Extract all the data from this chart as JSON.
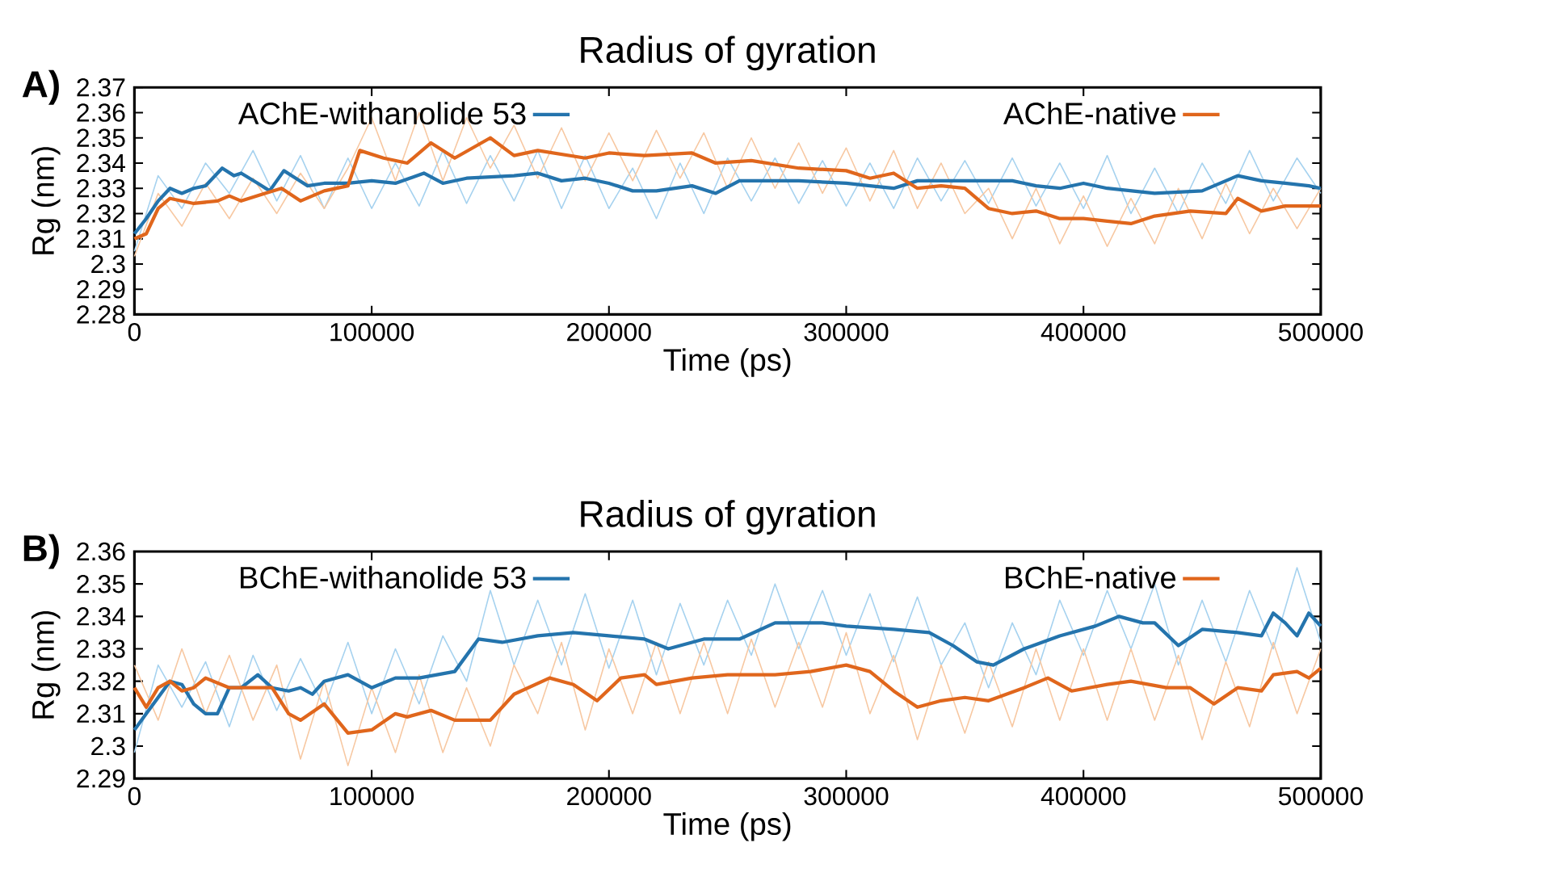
{
  "chart_data": [
    {
      "type": "line",
      "title": "Radius of gyration",
      "xlabel": "Time (ps)",
      "ylabel": "Rg (nm)",
      "annotations": [
        "A)"
      ],
      "legend": "top",
      "grid": false,
      "marker": "none",
      "line_style": "solid",
      "xlim": [
        0,
        500000
      ],
      "xticks": [
        0,
        100000,
        200000,
        300000,
        400000,
        500000
      ],
      "ylim": [
        2.28,
        2.37
      ],
      "yticks": [
        2.28,
        2.29,
        2.3,
        2.31,
        2.32,
        2.33,
        2.34,
        2.35,
        2.36,
        2.37
      ],
      "series": [
        {
          "color": "#a6d2ef",
          "x": [
            0,
            10000,
            20000,
            30000,
            40000,
            50000,
            60000,
            70000,
            80000,
            90000,
            100000,
            110000,
            120000,
            130000,
            140000,
            150000,
            160000,
            170000,
            180000,
            190000,
            200000,
            210000,
            220000,
            230000,
            240000,
            250000,
            260000,
            270000,
            280000,
            290000,
            300000,
            310000,
            320000,
            330000,
            340000,
            350000,
            360000,
            370000,
            380000,
            390000,
            400000,
            410000,
            420000,
            430000,
            440000,
            450000,
            460000,
            470000,
            480000,
            490000,
            500000
          ],
          "values": [
            2.305,
            2.335,
            2.322,
            2.34,
            2.328,
            2.345,
            2.325,
            2.343,
            2.322,
            2.342,
            2.322,
            2.34,
            2.323,
            2.345,
            2.324,
            2.343,
            2.325,
            2.345,
            2.322,
            2.343,
            2.322,
            2.338,
            2.318,
            2.34,
            2.32,
            2.342,
            2.325,
            2.342,
            2.324,
            2.341,
            2.323,
            2.34,
            2.322,
            2.342,
            2.325,
            2.341,
            2.324,
            2.342,
            2.323,
            2.34,
            2.322,
            2.343,
            2.32,
            2.338,
            2.32,
            2.34,
            2.324,
            2.345,
            2.325,
            2.342,
            2.328
          ]
        },
        {
          "color": "#f7c8a2",
          "x": [
            0,
            10000,
            20000,
            30000,
            40000,
            50000,
            60000,
            70000,
            80000,
            90000,
            100000,
            110000,
            120000,
            130000,
            140000,
            150000,
            160000,
            170000,
            180000,
            190000,
            200000,
            210000,
            220000,
            230000,
            240000,
            250000,
            260000,
            270000,
            280000,
            290000,
            300000,
            310000,
            320000,
            330000,
            340000,
            350000,
            360000,
            370000,
            380000,
            390000,
            400000,
            410000,
            420000,
            430000,
            440000,
            450000,
            460000,
            470000,
            480000,
            490000,
            500000
          ],
          "values": [
            2.303,
            2.328,
            2.315,
            2.332,
            2.318,
            2.334,
            2.32,
            2.336,
            2.322,
            2.338,
            2.358,
            2.333,
            2.36,
            2.333,
            2.358,
            2.338,
            2.355,
            2.334,
            2.354,
            2.333,
            2.352,
            2.333,
            2.353,
            2.334,
            2.352,
            2.33,
            2.35,
            2.33,
            2.348,
            2.328,
            2.346,
            2.325,
            2.345,
            2.322,
            2.34,
            2.32,
            2.33,
            2.31,
            2.33,
            2.308,
            2.327,
            2.307,
            2.326,
            2.308,
            2.33,
            2.31,
            2.332,
            2.312,
            2.33,
            2.314,
            2.33
          ]
        },
        {
          "name": "AChE-withanolide 53",
          "color": "#2474ad",
          "x": [
            0,
            5000,
            10000,
            15000,
            20000,
            25000,
            30000,
            37000,
            42000,
            45000,
            52000,
            57000,
            63000,
            68000,
            73000,
            80000,
            90000,
            100000,
            110000,
            122000,
            130000,
            140000,
            160000,
            170000,
            180000,
            190000,
            200000,
            210000,
            220000,
            235000,
            245000,
            255000,
            280000,
            300000,
            310000,
            320000,
            330000,
            345000,
            360000,
            370000,
            380000,
            390000,
            400000,
            410000,
            430000,
            450000,
            465000,
            475000,
            485000,
            495000,
            500000
          ],
          "values": [
            2.312,
            2.318,
            2.325,
            2.33,
            2.328,
            2.33,
            2.331,
            2.338,
            2.335,
            2.336,
            2.332,
            2.329,
            2.337,
            2.334,
            2.331,
            2.332,
            2.332,
            2.333,
            2.332,
            2.336,
            2.332,
            2.334,
            2.335,
            2.336,
            2.333,
            2.334,
            2.332,
            2.329,
            2.329,
            2.331,
            2.328,
            2.333,
            2.333,
            2.332,
            2.331,
            2.33,
            2.333,
            2.333,
            2.333,
            2.333,
            2.331,
            2.33,
            2.332,
            2.33,
            2.328,
            2.329,
            2.335,
            2.333,
            2.332,
            2.331,
            2.33
          ]
        },
        {
          "name": "AChE-native",
          "color": "#e0661c",
          "x": [
            0,
            5000,
            10000,
            15000,
            25000,
            35000,
            40000,
            45000,
            55000,
            62000,
            70000,
            80000,
            90000,
            95000,
            105000,
            115000,
            125000,
            135000,
            150000,
            160000,
            170000,
            190000,
            200000,
            215000,
            235000,
            245000,
            260000,
            280000,
            300000,
            310000,
            320000,
            330000,
            340000,
            350000,
            360000,
            370000,
            380000,
            390000,
            400000,
            410000,
            420000,
            430000,
            445000,
            460000,
            465000,
            475000,
            485000,
            500000
          ],
          "values": [
            2.31,
            2.312,
            2.322,
            2.326,
            2.324,
            2.325,
            2.327,
            2.325,
            2.328,
            2.33,
            2.325,
            2.329,
            2.331,
            2.345,
            2.342,
            2.34,
            2.348,
            2.342,
            2.35,
            2.343,
            2.345,
            2.342,
            2.344,
            2.343,
            2.344,
            2.34,
            2.341,
            2.338,
            2.337,
            2.334,
            2.336,
            2.33,
            2.331,
            2.33,
            2.322,
            2.32,
            2.321,
            2.318,
            2.318,
            2.317,
            2.316,
            2.319,
            2.321,
            2.32,
            2.326,
            2.321,
            2.323,
            2.323
          ]
        }
      ]
    },
    {
      "type": "line",
      "title": "Radius of gyration",
      "xlabel": "Time (ps)",
      "ylabel": "Rg (nm)",
      "annotations": [
        "B)"
      ],
      "legend": "top",
      "grid": false,
      "marker": "none",
      "line_style": "solid",
      "xlim": [
        0,
        500000
      ],
      "xticks": [
        0,
        100000,
        200000,
        300000,
        400000,
        500000
      ],
      "ylim": [
        2.29,
        2.36
      ],
      "yticks": [
        2.29,
        2.3,
        2.31,
        2.32,
        2.33,
        2.34,
        2.35,
        2.36
      ],
      "series": [
        {
          "color": "#a6d2ef",
          "x": [
            0,
            10000,
            20000,
            30000,
            40000,
            50000,
            60000,
            70000,
            80000,
            90000,
            100000,
            110000,
            120000,
            130000,
            140000,
            150000,
            160000,
            170000,
            180000,
            190000,
            200000,
            210000,
            220000,
            230000,
            240000,
            250000,
            260000,
            270000,
            280000,
            290000,
            300000,
            310000,
            320000,
            330000,
            340000,
            350000,
            360000,
            370000,
            380000,
            390000,
            400000,
            410000,
            420000,
            430000,
            440000,
            450000,
            460000,
            470000,
            480000,
            490000,
            500000
          ],
          "values": [
            2.298,
            2.325,
            2.312,
            2.326,
            2.306,
            2.328,
            2.311,
            2.327,
            2.312,
            2.332,
            2.31,
            2.33,
            2.313,
            2.334,
            2.32,
            2.348,
            2.325,
            2.345,
            2.325,
            2.347,
            2.324,
            2.345,
            2.322,
            2.344,
            2.325,
            2.345,
            2.328,
            2.35,
            2.33,
            2.348,
            2.328,
            2.347,
            2.326,
            2.346,
            2.325,
            2.338,
            2.318,
            2.338,
            2.322,
            2.345,
            2.328,
            2.348,
            2.33,
            2.35,
            2.325,
            2.345,
            2.326,
            2.348,
            2.33,
            2.355,
            2.332
          ]
        },
        {
          "color": "#f7c8a2",
          "x": [
            0,
            10000,
            20000,
            30000,
            40000,
            50000,
            60000,
            70000,
            80000,
            90000,
            100000,
            110000,
            120000,
            130000,
            140000,
            150000,
            160000,
            170000,
            180000,
            190000,
            200000,
            210000,
            220000,
            230000,
            240000,
            250000,
            260000,
            270000,
            280000,
            290000,
            300000,
            310000,
            320000,
            330000,
            340000,
            350000,
            360000,
            370000,
            380000,
            390000,
            400000,
            410000,
            420000,
            430000,
            440000,
            450000,
            460000,
            470000,
            480000,
            490000,
            500000
          ],
          "values": [
            2.325,
            2.308,
            2.33,
            2.31,
            2.328,
            2.308,
            2.325,
            2.296,
            2.32,
            2.294,
            2.318,
            2.298,
            2.322,
            2.298,
            2.318,
            2.3,
            2.325,
            2.31,
            2.332,
            2.305,
            2.33,
            2.31,
            2.332,
            2.31,
            2.332,
            2.31,
            2.333,
            2.312,
            2.332,
            2.312,
            2.335,
            2.31,
            2.328,
            2.302,
            2.325,
            2.304,
            2.326,
            2.306,
            2.33,
            2.308,
            2.33,
            2.308,
            2.33,
            2.308,
            2.328,
            2.302,
            2.326,
            2.306,
            2.332,
            2.31,
            2.33
          ]
        },
        {
          "name": "BChE-withanolide 53",
          "color": "#2474ad",
          "x": [
            0,
            5000,
            10000,
            15000,
            20000,
            25000,
            30000,
            35000,
            40000,
            45000,
            52000,
            58000,
            65000,
            70000,
            75000,
            80000,
            90000,
            100000,
            110000,
            120000,
            135000,
            145000,
            155000,
            170000,
            185000,
            200000,
            215000,
            225000,
            240000,
            255000,
            270000,
            290000,
            300000,
            320000,
            335000,
            345000,
            355000,
            362000,
            375000,
            390000,
            405000,
            415000,
            425000,
            430000,
            440000,
            450000,
            465000,
            475000,
            480000,
            485000,
            490000,
            495000,
            500000
          ],
          "values": [
            2.305,
            2.31,
            2.315,
            2.32,
            2.319,
            2.313,
            2.31,
            2.31,
            2.318,
            2.318,
            2.322,
            2.318,
            2.317,
            2.318,
            2.316,
            2.32,
            2.322,
            2.318,
            2.321,
            2.321,
            2.323,
            2.333,
            2.332,
            2.334,
            2.335,
            2.334,
            2.333,
            2.33,
            2.333,
            2.333,
            2.338,
            2.338,
            2.337,
            2.336,
            2.335,
            2.331,
            2.326,
            2.325,
            2.33,
            2.334,
            2.337,
            2.34,
            2.338,
            2.338,
            2.331,
            2.336,
            2.335,
            2.334,
            2.341,
            2.338,
            2.334,
            2.341,
            2.337
          ]
        },
        {
          "name": "BChE-native",
          "color": "#e0661c",
          "x": [
            0,
            5000,
            10000,
            15000,
            20000,
            25000,
            30000,
            40000,
            50000,
            58000,
            65000,
            70000,
            80000,
            90000,
            100000,
            110000,
            115000,
            125000,
            135000,
            150000,
            160000,
            175000,
            185000,
            195000,
            205000,
            215000,
            220000,
            235000,
            250000,
            270000,
            285000,
            300000,
            310000,
            320000,
            330000,
            340000,
            350000,
            360000,
            375000,
            385000,
            395000,
            410000,
            420000,
            435000,
            445000,
            455000,
            465000,
            475000,
            480000,
            490000,
            495000,
            500000
          ],
          "values": [
            2.318,
            2.312,
            2.318,
            2.32,
            2.317,
            2.318,
            2.321,
            2.318,
            2.318,
            2.318,
            2.31,
            2.308,
            2.313,
            2.304,
            2.305,
            2.31,
            2.309,
            2.311,
            2.308,
            2.308,
            2.316,
            2.321,
            2.319,
            2.314,
            2.321,
            2.322,
            2.319,
            2.321,
            2.322,
            2.322,
            2.323,
            2.325,
            2.323,
            2.317,
            2.312,
            2.314,
            2.315,
            2.314,
            2.318,
            2.321,
            2.317,
            2.319,
            2.32,
            2.318,
            2.318,
            2.313,
            2.318,
            2.317,
            2.322,
            2.323,
            2.321,
            2.324
          ]
        }
      ]
    }
  ]
}
